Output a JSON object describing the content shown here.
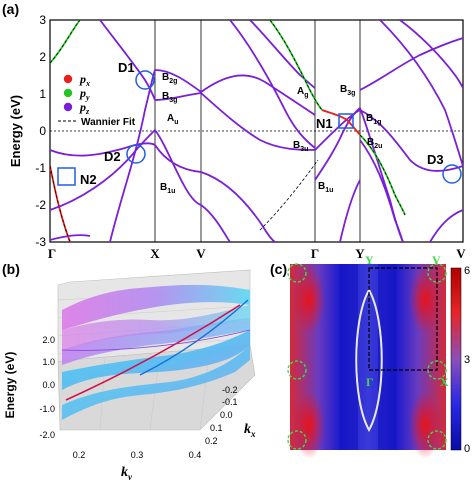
{
  "panel_a": {
    "label": "(a)",
    "ylabel": "Energy (eV)",
    "y_ticks": [
      "3",
      "2",
      "1",
      "0",
      "-1",
      "-2",
      "-3"
    ],
    "k_labels": [
      "Γ",
      "X",
      "V",
      "Γ",
      "Y",
      "V"
    ],
    "legend": {
      "px": "p",
      "px_sub": "x",
      "py": "p",
      "py_sub": "y",
      "pz": "p",
      "pz_sub": "z",
      "wannier": "Wannier Fit"
    },
    "colors": {
      "px": "#e8201c",
      "py": "#25c425",
      "pz": "#7a1fd6",
      "marker": "#1f5fe0",
      "grid": "#000000"
    },
    "irreps": [
      {
        "key": "b2g",
        "main": "B",
        "sub": "2g"
      },
      {
        "key": "b3g",
        "main": "B",
        "sub": "3g"
      },
      {
        "key": "au",
        "main": "A",
        "sub": "u"
      },
      {
        "key": "b1u_left",
        "main": "B",
        "sub": "1u"
      },
      {
        "key": "ag",
        "main": "A",
        "sub": "g"
      },
      {
        "key": "b3g_r",
        "main": "B",
        "sub": "3g"
      },
      {
        "key": "b1g",
        "main": "B",
        "sub": "1g"
      },
      {
        "key": "b2u",
        "main": "B",
        "sub": "2u"
      },
      {
        "key": "b3u",
        "main": "B",
        "sub": "3u"
      },
      {
        "key": "b1u_right",
        "main": "B",
        "sub": "1u"
      }
    ],
    "points": {
      "d1": "D1",
      "d2": "D2",
      "d3": "D3",
      "n1": "N1",
      "n2": "N2"
    }
  },
  "panel_b": {
    "label": "(b)",
    "zlabel": "Energy (eV)",
    "z_ticks": [
      "2.0",
      "1.0",
      "0.0",
      "-1.0",
      "-2.0"
    ],
    "ky_ticks": [
      "0.2",
      "0.3",
      "0.4"
    ],
    "kx_ticks": [
      "-0.2",
      "-0.1",
      "0.0",
      "0.1",
      "0.2"
    ],
    "xlabel_main": "k",
    "xlabel_sub": "y",
    "kxlabel_main": "k",
    "kxlabel_sub": "x"
  },
  "panel_c": {
    "label": "(c)",
    "points": {
      "y": "Y",
      "v_top": "V",
      "gamma": "Γ",
      "x": "X"
    },
    "colorbar_ticks": [
      "6",
      "3",
      "0"
    ]
  },
  "chart_data": {
    "type": "line",
    "title": "",
    "ylabel": "Energy (eV)",
    "ylim": [
      -3,
      3
    ],
    "x_path": [
      "Γ",
      "X",
      "V",
      "Γ",
      "Y",
      "V"
    ],
    "note_x_units": "path coordinate in fractions of total k-path",
    "series": [
      {
        "name": "p_x",
        "x": [
          0.0,
          0.05,
          0.1
        ],
        "y": [
          -1.25,
          -2.0,
          -3.0
        ]
      },
      {
        "name": "p_y",
        "x": [
          0.0,
          0.06,
          0.1,
          0.14
        ],
        "y": [
          2.3,
          3.0,
          3.0,
          2.5
        ]
      },
      {
        "name": "p_z",
        "x": [
          0.2,
          0.24,
          0.28,
          0.32
        ],
        "y": [
          1.4,
          0.8,
          0.2,
          -0.5
        ]
      }
    ]
  }
}
